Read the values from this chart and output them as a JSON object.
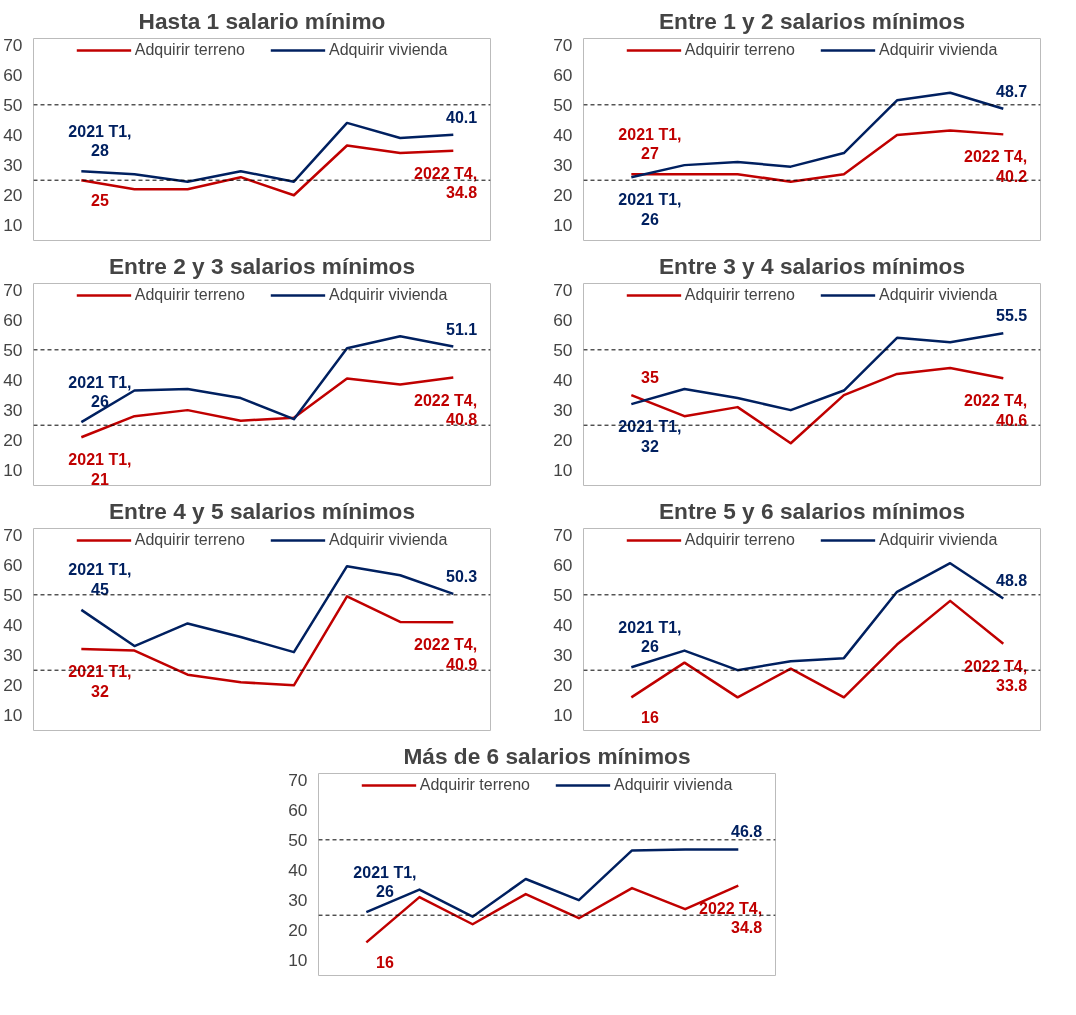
{
  "chart_data": [
    {
      "type": "line",
      "title": "Hasta 1 salario mínimo",
      "categories": [
        null,
        null,
        null,
        null,
        null,
        null,
        null,
        null
      ],
      "ylim": [
        5,
        72
      ],
      "yticks": [
        10,
        20,
        30,
        40,
        50,
        60,
        70
      ],
      "tick_labels": "y",
      "legend": "top",
      "grid": false,
      "marker": "none",
      "ref_lines": [
        {
          "axis": "y",
          "value": 50,
          "color": "#000000",
          "line_style": "dashed"
        },
        {
          "axis": "y",
          "value": 25,
          "color": "#000000",
          "line_style": "dashed"
        }
      ],
      "series": [
        {
          "name": "Adquirir terreno",
          "color": "#c00000",
          "values": [
            25,
            22,
            22,
            26,
            20,
            36.5,
            34,
            34.8
          ],
          "value_labels": [
            "25",
            null,
            null,
            null,
            null,
            null,
            null,
            "2022 T4,\n34.8"
          ]
        },
        {
          "name": "Adquirir vivienda",
          "color": "#002060",
          "values": [
            28,
            27,
            24.5,
            28,
            24.5,
            44,
            39,
            40.1
          ],
          "value_labels": [
            "2021 T1,\n28",
            null,
            null,
            null,
            null,
            null,
            null,
            "40.1"
          ]
        }
      ]
    },
    {
      "type": "line",
      "title": "Entre 1 y 2 salarios mínimos",
      "categories": [
        null,
        null,
        null,
        null,
        null,
        null,
        null,
        null
      ],
      "ylim": [
        5,
        72
      ],
      "yticks": [
        10,
        20,
        30,
        40,
        50,
        60,
        70
      ],
      "tick_labels": "y",
      "legend": "top",
      "grid": false,
      "marker": "none",
      "ref_lines": [
        {
          "axis": "y",
          "value": 50,
          "color": "#000000",
          "line_style": "dashed"
        },
        {
          "axis": "y",
          "value": 25,
          "color": "#000000",
          "line_style": "dashed"
        }
      ],
      "series": [
        {
          "name": "Adquirir terreno",
          "color": "#c00000",
          "values": [
            27,
            27,
            27,
            24.5,
            27,
            40,
            41.5,
            40.2
          ],
          "value_labels": [
            "2021 T1,\n27",
            null,
            null,
            null,
            null,
            null,
            null,
            "2022 T4,\n40.2"
          ]
        },
        {
          "name": "Adquirir vivienda",
          "color": "#002060",
          "values": [
            26,
            30,
            31,
            29.5,
            34,
            51.5,
            54,
            48.7
          ],
          "value_labels": [
            "2021 T1,\n26",
            null,
            null,
            null,
            null,
            null,
            null,
            "48.7"
          ]
        }
      ]
    },
    {
      "type": "line",
      "title": "Entre 2 y 3 salarios mínimos",
      "categories": [
        null,
        null,
        null,
        null,
        null,
        null,
        null,
        null
      ],
      "ylim": [
        5,
        72
      ],
      "yticks": [
        10,
        20,
        30,
        40,
        50,
        60,
        70
      ],
      "tick_labels": "y",
      "legend": "top",
      "grid": false,
      "marker": "none",
      "ref_lines": [
        {
          "axis": "y",
          "value": 50,
          "color": "#000000",
          "line_style": "dashed"
        },
        {
          "axis": "y",
          "value": 25,
          "color": "#000000",
          "line_style": "dashed"
        }
      ],
      "series": [
        {
          "name": "Adquirir terreno",
          "color": "#c00000",
          "values": [
            21,
            28,
            30,
            26.5,
            27.5,
            40.5,
            38.5,
            40.8
          ],
          "value_labels": [
            "2021 T1,\n21",
            null,
            null,
            null,
            null,
            null,
            null,
            "2022 T4,\n40.8"
          ]
        },
        {
          "name": "Adquirir vivienda",
          "color": "#002060",
          "values": [
            26,
            36.5,
            37,
            34,
            27,
            50.5,
            54.5,
            51.1
          ],
          "value_labels": [
            "2021 T1,\n26",
            null,
            null,
            null,
            null,
            null,
            null,
            "51.1"
          ]
        }
      ]
    },
    {
      "type": "line",
      "title": "Entre 3 y 4 salarios mínimos",
      "categories": [
        null,
        null,
        null,
        null,
        null,
        null,
        null,
        null
      ],
      "ylim": [
        5,
        72
      ],
      "yticks": [
        10,
        20,
        30,
        40,
        50,
        60,
        70
      ],
      "tick_labels": "y",
      "legend": "top",
      "grid": false,
      "marker": "none",
      "ref_lines": [
        {
          "axis": "y",
          "value": 50,
          "color": "#000000",
          "line_style": "dashed"
        },
        {
          "axis": "y",
          "value": 25,
          "color": "#000000",
          "line_style": "dashed"
        }
      ],
      "series": [
        {
          "name": "Adquirir terreno",
          "color": "#c00000",
          "values": [
            35,
            28,
            31,
            19,
            35,
            42,
            44,
            40.6
          ],
          "value_labels": [
            "35",
            null,
            null,
            null,
            null,
            null,
            null,
            "2022 T4,\n40.6"
          ]
        },
        {
          "name": "Adquirir vivienda",
          "color": "#002060",
          "values": [
            32,
            37,
            34,
            30,
            36.5,
            54,
            52.5,
            55.5
          ],
          "value_labels": [
            "2021 T1,\n32",
            null,
            null,
            null,
            null,
            null,
            null,
            "55.5"
          ]
        }
      ]
    },
    {
      "type": "line",
      "title": "Entre 4 y 5 salarios mínimos",
      "categories": [
        null,
        null,
        null,
        null,
        null,
        null,
        null,
        null
      ],
      "ylim": [
        5,
        72
      ],
      "yticks": [
        10,
        20,
        30,
        40,
        50,
        60,
        70
      ],
      "tick_labels": "y",
      "legend": "top",
      "grid": false,
      "marker": "none",
      "ref_lines": [
        {
          "axis": "y",
          "value": 50,
          "color": "#000000",
          "line_style": "dashed"
        },
        {
          "axis": "y",
          "value": 25,
          "color": "#000000",
          "line_style": "dashed"
        }
      ],
      "series": [
        {
          "name": "Adquirir terreno",
          "color": "#c00000",
          "values": [
            32,
            31.5,
            23.5,
            21,
            20,
            49.5,
            41,
            40.9
          ],
          "value_labels": [
            "2021 T1,\n32",
            null,
            null,
            null,
            null,
            null,
            null,
            "2022 T4,\n40.9"
          ]
        },
        {
          "name": "Adquirir vivienda",
          "color": "#002060",
          "values": [
            45,
            33,
            40.5,
            36,
            31,
            59.5,
            56.5,
            50.3
          ],
          "value_labels": [
            "2021 T1,\n45",
            null,
            null,
            null,
            null,
            null,
            null,
            "50.3"
          ]
        }
      ]
    },
    {
      "type": "line",
      "title": "Entre 5 y 6 salarios mínimos",
      "categories": [
        null,
        null,
        null,
        null,
        null,
        null,
        null,
        null
      ],
      "ylim": [
        5,
        72
      ],
      "yticks": [
        10,
        20,
        30,
        40,
        50,
        60,
        70
      ],
      "tick_labels": "y",
      "legend": "top",
      "grid": false,
      "marker": "none",
      "ref_lines": [
        {
          "axis": "y",
          "value": 50,
          "color": "#000000",
          "line_style": "dashed"
        },
        {
          "axis": "y",
          "value": 25,
          "color": "#000000",
          "line_style": "dashed"
        }
      ],
      "series": [
        {
          "name": "Adquirir terreno",
          "color": "#c00000",
          "values": [
            16,
            27.5,
            16,
            25.5,
            16,
            33.5,
            48,
            33.8
          ],
          "value_labels": [
            "16",
            null,
            null,
            null,
            null,
            null,
            null,
            "2022 T4,\n33.8"
          ]
        },
        {
          "name": "Adquirir vivienda",
          "color": "#002060",
          "values": [
            26,
            31.5,
            25,
            28,
            29,
            51,
            60.5,
            48.8
          ],
          "value_labels": [
            "2021 T1,\n26",
            null,
            null,
            null,
            null,
            null,
            null,
            "48.8"
          ]
        }
      ]
    },
    {
      "type": "line",
      "title": "Más de 6 salarios mínimos",
      "categories": [
        null,
        null,
        null,
        null,
        null,
        null,
        null,
        null
      ],
      "ylim": [
        5,
        72
      ],
      "yticks": [
        10,
        20,
        30,
        40,
        50,
        60,
        70
      ],
      "tick_labels": "y",
      "legend": "top",
      "grid": false,
      "marker": "none",
      "ref_lines": [
        {
          "axis": "y",
          "value": 50,
          "color": "#000000",
          "line_style": "dashed"
        },
        {
          "axis": "y",
          "value": 25,
          "color": "#000000",
          "line_style": "dashed"
        }
      ],
      "series": [
        {
          "name": "Adquirir terreno",
          "color": "#c00000",
          "values": [
            16,
            31,
            22,
            32,
            24,
            34,
            27,
            34.8
          ],
          "value_labels": [
            "16",
            null,
            null,
            null,
            null,
            null,
            null,
            "2022 T4,\n34.8"
          ]
        },
        {
          "name": "Adquirir vivienda",
          "color": "#002060",
          "values": [
            26,
            33.5,
            24.5,
            37,
            30,
            46.5,
            46.8,
            46.8
          ],
          "value_labels": [
            "2021 T1,\n26",
            null,
            null,
            null,
            null,
            null,
            null,
            "46.8"
          ]
        }
      ]
    }
  ]
}
